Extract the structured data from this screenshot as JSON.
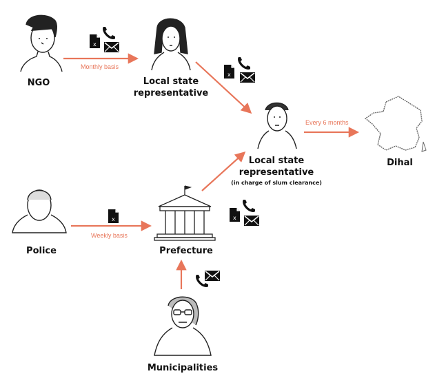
{
  "nodes": {
    "ngo": {
      "label": "NGO"
    },
    "local_rep": {
      "label_line1": "Local state",
      "label_line2": "representative"
    },
    "local_rep_slum": {
      "label_line1": "Local state",
      "label_line2": "representative",
      "sublabel": "(in charge of slum clearance)"
    },
    "dihal": {
      "label": "Dihal"
    },
    "police": {
      "label": "Police"
    },
    "prefecture": {
      "label": "Prefecture"
    },
    "municipalities": {
      "label": "Municipalities"
    }
  },
  "edges": {
    "ngo_to_rep": {
      "label": "Monthly basis",
      "channels": [
        "document-icon",
        "phone-icon",
        "mail-icon"
      ]
    },
    "rep_to_slum_rep": {
      "channels": [
        "document-icon",
        "phone-icon",
        "mail-icon"
      ]
    },
    "slum_rep_to_dihal": {
      "label": "Every 6 months"
    },
    "police_to_prefecture": {
      "label": "Weekly basis",
      "channels": [
        "document-icon"
      ]
    },
    "prefecture_to_slum_rep": {
      "channels": [
        "document-icon",
        "phone-icon",
        "mail-icon"
      ]
    },
    "municipalities_to_prefecture": {
      "channels": [
        "phone-icon",
        "mail-icon"
      ]
    }
  },
  "doc_glyph": "x",
  "colors": {
    "arrow": "#e8765a",
    "ink": "#111111"
  }
}
